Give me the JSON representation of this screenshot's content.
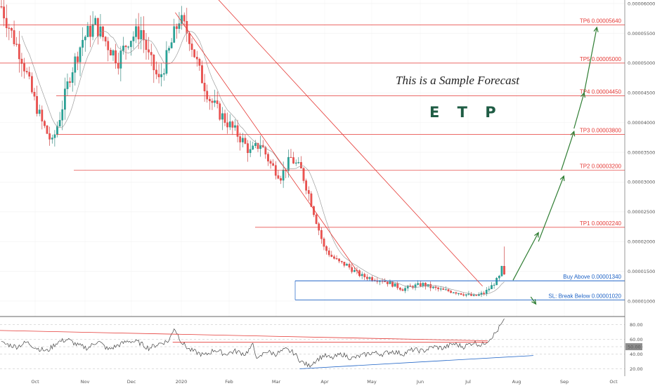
{
  "chart_data": {
    "type": "candlestick",
    "symbol": "E T P",
    "annotation": "This is a Sample Forecast",
    "y_axis": {
      "min": 8e-06,
      "max": 6e-05,
      "ticks": [
        "0.00006000",
        "0.00005500",
        "0.00005000",
        "0.00004500",
        "0.00004000",
        "0.00003500",
        "0.00003000",
        "0.00002500",
        "0.00002000",
        "0.00001500",
        "0.00001000"
      ],
      "tick_values": [
        6e-05,
        5.5e-05,
        5e-05,
        4.5e-05,
        4e-05,
        3.5e-05,
        3e-05,
        2.5e-05,
        2e-05,
        1.5e-05,
        1e-05
      ]
    },
    "x_axis": {
      "ticks": [
        "Oct",
        "Nov",
        "Dec",
        "2020",
        "Feb",
        "Mar",
        "Apr",
        "May",
        "Jun",
        "Jul",
        "Aug",
        "Sep",
        "Oct"
      ]
    },
    "levels": [
      {
        "label": "TP6 0.00005640",
        "value": 5.64e-05,
        "color": "#e53935"
      },
      {
        "label": "TP5 0.00005000",
        "value": 5e-05,
        "color": "#e53935"
      },
      {
        "label": "TP4 0.00004450",
        "value": 4.45e-05,
        "color": "#e53935"
      },
      {
        "label": "TP3 0.00003800",
        "value": 3.8e-05,
        "color": "#e53935"
      },
      {
        "label": "TP2 0.00003200",
        "value": 3.2e-05,
        "color": "#e53935"
      },
      {
        "label": "TP1 0.00002240",
        "value": 2.24e-05,
        "color": "#e53935"
      },
      {
        "label": "Buy Above 0.00001340",
        "value": 1.34e-05,
        "color": "#1e63c6"
      },
      {
        "label": "SL: Break Below 0.00001020",
        "value": 1.02e-05,
        "color": "#1e63c6"
      }
    ],
    "price_path": [
      [
        0,
        5.95e-05
      ],
      [
        4,
        5.5e-05
      ],
      [
        8,
        5.1e-05
      ],
      [
        12,
        4.5e-05
      ],
      [
        16,
        4e-05
      ],
      [
        20,
        3.65e-05
      ],
      [
        23,
        4.1e-05
      ],
      [
        27,
        4.8e-05
      ],
      [
        32,
        5.4e-05
      ],
      [
        37,
        5.65e-05
      ],
      [
        42,
        5.3e-05
      ],
      [
        46,
        5.05e-05
      ],
      [
        50,
        5.4e-05
      ],
      [
        55,
        5.55e-05
      ],
      [
        58,
        5.1e-05
      ],
      [
        62,
        4.7e-05
      ],
      [
        66,
        5.2e-05
      ],
      [
        70,
        5.75e-05
      ],
      [
        74,
        5.45e-05
      ],
      [
        78,
        4.85e-05
      ],
      [
        82,
        4.4e-05
      ],
      [
        86,
        4.15e-05
      ],
      [
        90,
        3.95e-05
      ],
      [
        94,
        3.75e-05
      ],
      [
        98,
        3.5e-05
      ],
      [
        102,
        3.65e-05
      ],
      [
        106,
        3.3e-05
      ],
      [
        110,
        3.1e-05
      ],
      [
        114,
        3.4e-05
      ],
      [
        118,
        3.2e-05
      ],
      [
        121,
        2.8e-05
      ],
      [
        124,
        2.35e-05
      ],
      [
        127,
        1.9e-05
      ],
      [
        130,
        1.75e-05
      ],
      [
        133,
        1.65e-05
      ],
      [
        136,
        1.6e-05
      ],
      [
        139,
        1.5e-05
      ],
      [
        142,
        1.42e-05
      ],
      [
        146,
        1.38e-05
      ],
      [
        150,
        1.35e-05
      ],
      [
        154,
        1.28e-05
      ],
      [
        158,
        1.2e-05
      ],
      [
        162,
        1.25e-05
      ],
      [
        166,
        1.28e-05
      ],
      [
        170,
        1.22e-05
      ],
      [
        174,
        1.18e-05
      ],
      [
        178,
        1.16e-05
      ],
      [
        182,
        1.12e-05
      ],
      [
        186,
        1.08e-05
      ],
      [
        190,
        1.13e-05
      ],
      [
        193,
        1.25e-05
      ],
      [
        196,
        1.4e-05
      ],
      [
        198,
        1.7e-05
      ]
    ],
    "rsi": {
      "ticks": [
        "80.00",
        "60.00",
        "50.00",
        "40.00",
        "20.00"
      ],
      "tick_values": [
        80,
        60,
        50,
        40,
        20
      ],
      "current_label": "50.00",
      "current": 50,
      "path": [
        [
          0,
          55
        ],
        [
          6,
          50
        ],
        [
          10,
          56
        ],
        [
          14,
          48
        ],
        [
          18,
          44
        ],
        [
          22,
          56
        ],
        [
          26,
          60
        ],
        [
          30,
          52
        ],
        [
          34,
          48
        ],
        [
          38,
          58
        ],
        [
          42,
          46
        ],
        [
          46,
          52
        ],
        [
          50,
          58
        ],
        [
          54,
          56
        ],
        [
          58,
          48
        ],
        [
          62,
          54
        ],
        [
          66,
          58
        ],
        [
          68,
          76
        ],
        [
          71,
          56
        ],
        [
          74,
          46
        ],
        [
          77,
          42
        ],
        [
          80,
          38
        ],
        [
          84,
          46
        ],
        [
          88,
          40
        ],
        [
          92,
          44
        ],
        [
          96,
          40
        ],
        [
          99,
          52
        ],
        [
          101,
          32
        ],
        [
          104,
          44
        ],
        [
          108,
          40
        ],
        [
          112,
          46
        ],
        [
          115,
          42
        ],
        [
          118,
          30
        ],
        [
          121,
          24
        ],
        [
          124,
          32
        ],
        [
          127,
          38
        ],
        [
          130,
          34
        ],
        [
          134,
          40
        ],
        [
          138,
          34
        ],
        [
          142,
          38
        ],
        [
          146,
          42
        ],
        [
          150,
          40
        ],
        [
          154,
          44
        ],
        [
          158,
          40
        ],
        [
          162,
          46
        ],
        [
          166,
          44
        ],
        [
          170,
          50
        ],
        [
          174,
          48
        ],
        [
          178,
          54
        ],
        [
          182,
          50
        ],
        [
          186,
          56
        ],
        [
          189,
          52
        ],
        [
          192,
          60
        ],
        [
          195,
          70
        ],
        [
          198,
          88
        ]
      ],
      "trendlines": [
        {
          "from": [
            0,
            72
          ],
          "to": [
            192,
            58
          ],
          "color": "#e53935"
        },
        {
          "from": [
            68,
            56
          ],
          "to": [
            192,
            56
          ],
          "color": "#e53935"
        },
        {
          "from": [
            118,
            20
          ],
          "to": [
            210,
            38
          ],
          "color": "#1e63c6"
        }
      ]
    },
    "trendlines": [
      {
        "from": [
          69,
          5.85e-05
        ],
        "to": [
          142,
          1.42e-05
        ],
        "color": "#e53935"
      },
      {
        "from": [
          82,
          6.25e-05
        ],
        "to": [
          190,
          1.25e-05
        ],
        "color": "#e53935"
      }
    ],
    "forecast_arrows": [
      {
        "from": [
          202,
          1.35e-05
        ],
        "to": [
          212,
          2.15e-05
        ],
        "color": "#2e7d32"
      },
      {
        "from": [
          212,
          2e-05
        ],
        "to": [
          222,
          3.1e-05
        ],
        "color": "#2e7d32"
      },
      {
        "from": [
          221,
          3.2e-05
        ],
        "to": [
          226,
          3.85e-05
        ],
        "color": "#2e7d32"
      },
      {
        "from": [
          226,
          3.9e-05
        ],
        "to": [
          230,
          4.5e-05
        ],
        "color": "#2e7d32"
      },
      {
        "from": [
          230,
          4.5e-05
        ],
        "to": [
          235,
          5.6e-05
        ],
        "color": "#2e7d32"
      },
      {
        "from": [
          209,
          1.07e-05
        ],
        "to": [
          211,
          9.5e-06
        ],
        "color": "#2e7d32"
      }
    ]
  }
}
